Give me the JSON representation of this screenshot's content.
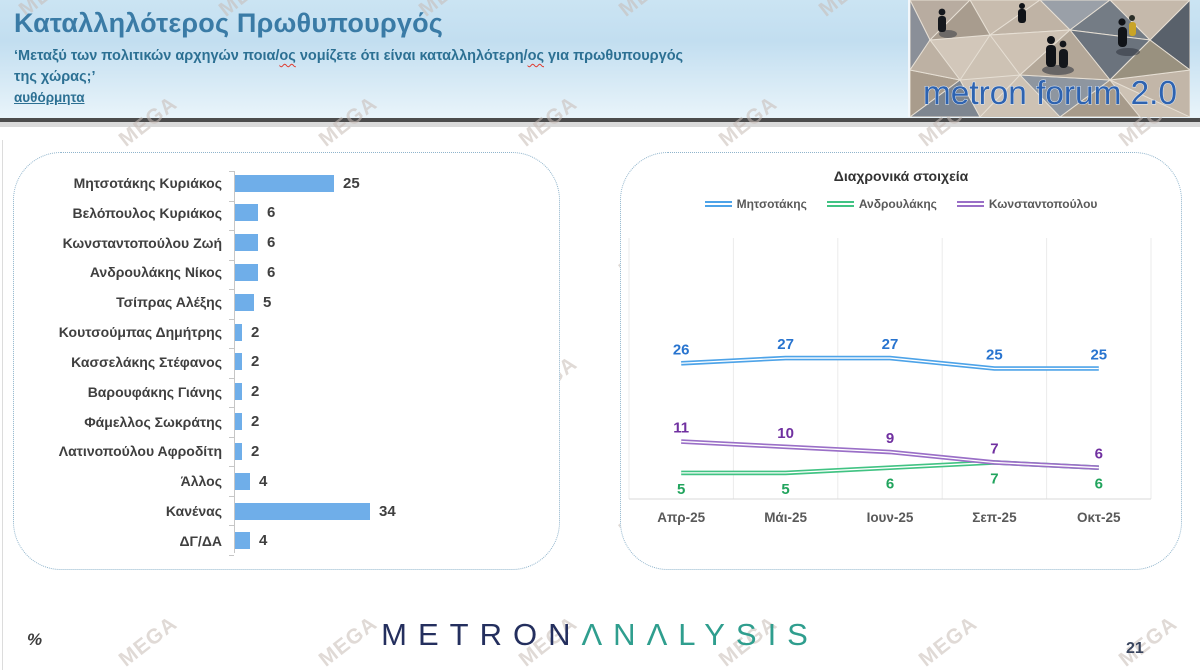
{
  "header": {
    "title": "Καταλληλότερος Πρωθυπουργός",
    "subtitle_parts": [
      {
        "text": "‘Μεταξύ των πολιτικών αρχηγών ποια/"
      },
      {
        "text": "ος",
        "wavy": true
      },
      {
        "text": " νομίζετε ότι είναι καταλληλότερη/"
      },
      {
        "text": "ος",
        "wavy": true
      },
      {
        "text": " για πρωθυπουργός"
      }
    ],
    "subtitle_line2": "της χώρας;’",
    "note": "αυθόρμητα",
    "logo_text": "metron forum 2.0"
  },
  "chart_data": [
    {
      "type": "bar",
      "orientation": "horizontal",
      "title": "",
      "categories": [
        "Μητσοτάκης Κυριάκος",
        "Βελόπουλος Κυριάκος",
        "Κωνσταντοπούλου Ζωή",
        "Ανδρουλάκης Νίκος",
        "Τσίπρας Αλέξης",
        "Κουτσούμπας Δημήτρης",
        "Κασσελάκης Στέφανος",
        "Βαρουφάκης Γιάνης",
        "Φάμελλος Σωκράτης",
        "Λατινοπούλου Αφροδίτη",
        "Άλλος",
        "Κανένας",
        "ΔΓ/ΔΑ"
      ],
      "values": [
        25,
        6,
        6,
        6,
        5,
        2,
        2,
        2,
        2,
        2,
        4,
        34,
        4
      ],
      "bar_color": "#6FAEE9",
      "xlim": [
        0,
        40
      ],
      "unit": "%"
    },
    {
      "type": "line",
      "title": "Διαχρονικά στοιχεία",
      "categories": [
        "Απρ-25",
        "Μάι-25",
        "Ιουν-25",
        "Σεπ-25",
        "Οκτ-25"
      ],
      "series": [
        {
          "name": "Μητσοτάκης",
          "values": [
            26,
            27,
            27,
            25,
            25
          ],
          "color": "#4DA3E8",
          "label_color": "#2874CF",
          "label_position": "above"
        },
        {
          "name": "Ανδρουλάκης",
          "values": [
            5,
            5,
            6,
            7,
            6
          ],
          "color": "#41C383",
          "label_color": "#21A45D",
          "label_position": "below"
        },
        {
          "name": "Κωνσταντοπούλου",
          "values": [
            11,
            10,
            9,
            7,
            6
          ],
          "color": "#9A6FC7",
          "label_color": "#7030A0",
          "label_position": "above"
        }
      ],
      "ylim": [
        0,
        50
      ],
      "grid": "vertical",
      "legend_position": "top",
      "unit": "%"
    }
  ],
  "footer": {
    "percent_label": "%",
    "brand_primary": "METRON",
    "brand_secondary": "ΛNΛLYSIS",
    "page_number": "21"
  },
  "watermark": {
    "text": "MEGA"
  },
  "colors": {
    "title": "#3A7BA6",
    "subtitle": "#2C7093",
    "bar": "#6FAEE9",
    "line_blue": "#4DA3E8",
    "line_green": "#41C383",
    "line_purple": "#9A6FC7",
    "axis_gray": "#595959"
  }
}
